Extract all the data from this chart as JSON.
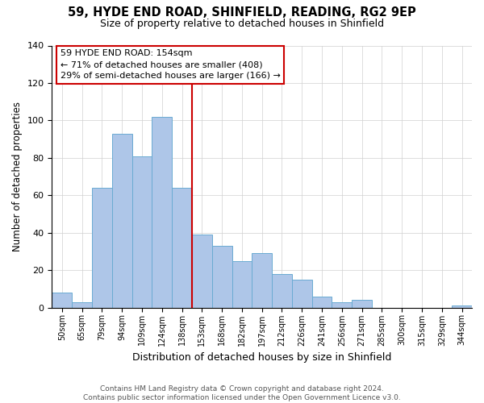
{
  "title": "59, HYDE END ROAD, SHINFIELD, READING, RG2 9EP",
  "subtitle": "Size of property relative to detached houses in Shinfield",
  "xlabel": "Distribution of detached houses by size in Shinfield",
  "ylabel": "Number of detached properties",
  "footer_line1": "Contains HM Land Registry data © Crown copyright and database right 2024.",
  "footer_line2": "Contains public sector information licensed under the Open Government Licence v3.0.",
  "bin_labels": [
    "50sqm",
    "65sqm",
    "79sqm",
    "94sqm",
    "109sqm",
    "124sqm",
    "138sqm",
    "153sqm",
    "168sqm",
    "182sqm",
    "197sqm",
    "212sqm",
    "226sqm",
    "241sqm",
    "256sqm",
    "271sqm",
    "285sqm",
    "300sqm",
    "315sqm",
    "329sqm",
    "344sqm"
  ],
  "bar_values": [
    8,
    3,
    64,
    93,
    81,
    102,
    64,
    39,
    33,
    25,
    29,
    18,
    15,
    6,
    3,
    4,
    0,
    0,
    0,
    0,
    1
  ],
  "bar_color": "#aec6e8",
  "bar_edge_color": "#6aabd2",
  "vline_x": 7,
  "vline_color": "#cc0000",
  "annotation_title": "59 HYDE END ROAD: 154sqm",
  "annotation_line1": "← 71% of detached houses are smaller (408)",
  "annotation_line2": "29% of semi-detached houses are larger (166) →",
  "annotation_box_color": "#ffffff",
  "annotation_box_edge_color": "#cc0000",
  "ylim": [
    0,
    140
  ],
  "yticks": [
    0,
    20,
    40,
    60,
    80,
    100,
    120,
    140
  ]
}
